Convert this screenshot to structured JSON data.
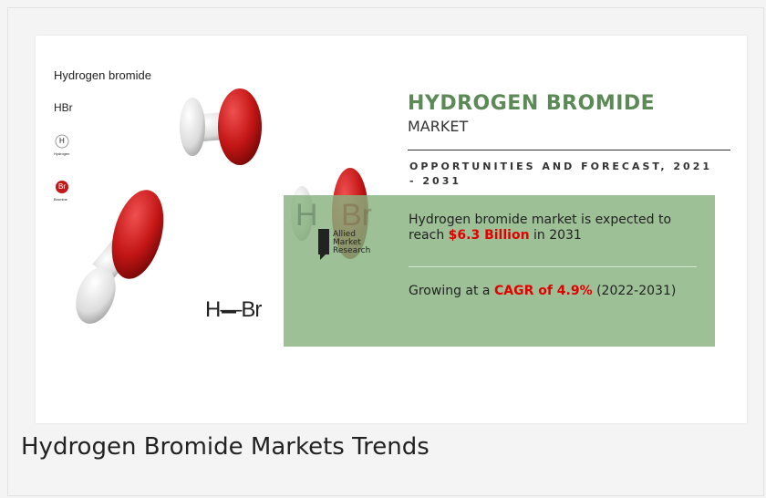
{
  "image": {
    "label_title": "Hydrogen bromide",
    "label_formula": "HBr",
    "h_symbol": "H",
    "h_name": "Hydrogen",
    "br_symbol": "Br",
    "br_name": "Bromine",
    "bond_formula": "H—Br",
    "faded": [
      "H",
      "Br"
    ],
    "logo": [
      "Allied",
      "Market",
      "Research"
    ]
  },
  "infographic": {
    "title": "HYDROGEN BROMIDE",
    "subtitle": "MARKET",
    "heading": "OPPORTUNITIES AND FORECAST, 2021 - 2031",
    "stat1": [
      "Hydrogen bromide market is expected to reach ",
      "$6.3 Billion",
      " in 2031"
    ],
    "stat2": [
      "Growing at a ",
      "CAGR of 4.9%",
      " (2022-2031)"
    ]
  },
  "caption": "Hydrogen Bromide Markets Trends"
}
